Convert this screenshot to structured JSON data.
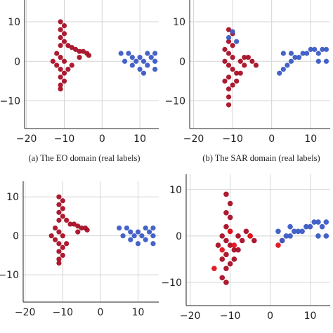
{
  "chart_data": [
    {
      "type": "scatter",
      "caption": "(a) The EO domain (real labels)",
      "xlim": [
        -20.5,
        15
      ],
      "ylim": [
        -17,
        15.5
      ],
      "xticks": [
        {
          "value": -20,
          "label": "−20"
        },
        {
          "value": -10,
          "label": "−10"
        },
        0,
        10
      ],
      "yticks": [
        {
          "value": -10,
          "label": "−10"
        },
        0,
        10
      ],
      "grid": true,
      "series": [
        {
          "color": "#a80f26",
          "x": [
            -11,
            -10,
            -11,
            -10,
            -11,
            -10,
            -9,
            -8,
            -7,
            -6,
            -5,
            -4,
            -3.5,
            -11,
            -12,
            -11,
            -10,
            -12,
            -11,
            -10,
            -11,
            -10,
            -11,
            -11,
            -9,
            -8,
            -13,
            -6
          ],
          "y": [
            10,
            9,
            8,
            7,
            6,
            5,
            4,
            3.5,
            3,
            2.5,
            2.5,
            2,
            1.5,
            4,
            2,
            1,
            0,
            -1,
            -2,
            -3,
            -4,
            -5,
            -6,
            -7,
            -2,
            -1,
            0,
            1
          ]
        },
        {
          "color": "#3b5bc4",
          "x": [
            5,
            6,
            7,
            8,
            9,
            10,
            11,
            12,
            13,
            14,
            14,
            10,
            8,
            12,
            14,
            11
          ],
          "y": [
            2,
            0,
            2,
            1,
            0,
            1,
            0,
            -1,
            1,
            0,
            -2,
            -2,
            -1,
            2,
            2,
            -3
          ]
        }
      ]
    },
    {
      "type": "scatter",
      "caption": "(b) The SAR domain (real labels)",
      "xlim": [
        -21,
        15
      ],
      "ylim": [
        -17,
        15.5
      ],
      "xticks": [
        {
          "value": -20,
          "label": "−20"
        },
        {
          "value": -10,
          "label": "−10"
        },
        0,
        10
      ],
      "yticks": [
        {
          "value": -10,
          "label": "−10"
        },
        0,
        10
      ],
      "grid": true,
      "series": [
        {
          "color": "#a80f26",
          "x": [
            -11,
            -10,
            -11,
            -10,
            -11,
            -10,
            -12,
            -11,
            -10,
            -9,
            -11,
            -12,
            -11,
            -11,
            -11,
            -8,
            -7,
            -6,
            -5,
            -4,
            -8,
            -9,
            -10,
            -7,
            -12
          ],
          "y": [
            8,
            7,
            5,
            4,
            2,
            1,
            0,
            -1,
            -2,
            -3,
            -4,
            -5,
            -7,
            -9,
            -11,
            0,
            -1,
            1,
            0,
            -1,
            -3,
            -5,
            -6,
            1,
            3
          ]
        },
        {
          "color": "#3b5bc4",
          "x": [
            2,
            3,
            4,
            5,
            6,
            7,
            8,
            9,
            10,
            11,
            12,
            13,
            14,
            12,
            14,
            3,
            5,
            -10,
            -9,
            -11
          ],
          "y": [
            -3,
            -2,
            -1,
            0,
            1,
            1,
            2,
            2,
            3,
            3,
            2,
            3,
            3,
            0,
            0,
            2,
            2,
            7.5,
            5,
            6
          ]
        }
      ]
    },
    {
      "type": "scatter",
      "xlim": [
        -20.5,
        15.5
      ],
      "ylim": [
        -17,
        14
      ],
      "xticks": [
        {
          "value": -20,
          "label": "−20"
        },
        {
          "value": -10,
          "label": "−10"
        },
        0,
        10
      ],
      "yticks": [
        {
          "value": -10,
          "label": "−10"
        },
        0,
        10
      ],
      "grid": true,
      "series": [
        {
          "color": "#a80f26",
          "x": [
            -11,
            -10,
            -11,
            -10,
            -11,
            -10,
            -9,
            -8,
            -7,
            -6,
            -5,
            -4,
            -3.5,
            -11,
            -12,
            -11,
            -10,
            -12,
            -11,
            -10,
            -11,
            -10,
            -11,
            -11,
            -9,
            -13,
            -6
          ],
          "y": [
            10,
            9,
            8,
            7,
            6,
            5,
            4,
            3,
            3,
            2.5,
            2,
            2,
            1.5,
            4,
            2,
            1,
            0,
            -1,
            -2,
            -3,
            -4,
            -5,
            -6,
            -7,
            -2,
            0,
            1
          ]
        },
        {
          "color": "#3b5bc4",
          "x": [
            5,
            6,
            7,
            8,
            9,
            10,
            11,
            12,
            13,
            14,
            14,
            10,
            8,
            12,
            14
          ],
          "y": [
            2,
            0,
            2,
            1,
            0,
            1,
            0,
            -1,
            1,
            0,
            -2,
            -2,
            -1,
            2,
            2
          ]
        }
      ]
    },
    {
      "type": "scatter",
      "xlim": [
        -21,
        15
      ],
      "ylim": [
        -15,
        13.3
      ],
      "xticks": [
        {
          "value": -20,
          "label": "−20"
        },
        {
          "value": -10,
          "label": "−10"
        },
        0,
        10
      ],
      "yticks": [
        {
          "value": -10,
          "label": "−10"
        },
        0,
        10
      ],
      "grid": true,
      "series": [
        {
          "color": "#a80f26",
          "x": [
            -11,
            -10,
            -11,
            -10,
            -11,
            -10,
            -12,
            -11,
            -10,
            -9,
            -11,
            -12,
            -11,
            -11,
            -8,
            -7,
            -6,
            -5,
            -4,
            -8,
            -9,
            -10,
            -12,
            -13
          ],
          "y": [
            9,
            7,
            5,
            4,
            2,
            1,
            0,
            -1,
            -2,
            -3,
            -4,
            -5,
            -7,
            -10,
            0,
            -1,
            1,
            0,
            -1,
            -3,
            -5,
            -6,
            -9,
            -2
          ]
        },
        {
          "color": "#e0121c",
          "x": [
            -14,
            -12,
            -9,
            -5,
            2,
            3,
            -10
          ],
          "y": [
            -7,
            -3,
            -2,
            0,
            -2,
            -1,
            1
          ]
        },
        {
          "color": "#3b5bc4",
          "x": [
            3,
            4,
            5,
            6,
            7,
            8,
            9,
            10,
            11,
            12,
            13,
            14,
            12,
            14,
            2,
            5
          ],
          "y": [
            -1,
            0,
            0,
            1,
            1,
            1,
            2,
            2,
            3,
            3,
            2,
            3,
            0,
            0,
            1,
            2
          ]
        }
      ]
    }
  ]
}
